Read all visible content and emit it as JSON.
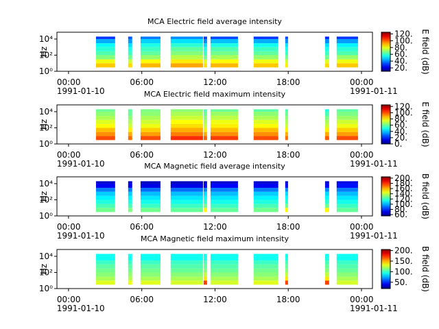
{
  "chart_data": [
    {
      "type": "spectrogram",
      "title": "MCA  Electric field average intensity",
      "ylabel": "Hz",
      "colorbar_label": "E field (dB)",
      "colormap": "jet",
      "log_y": true,
      "xlim": [
        "1991-01-09 23:03",
        "1991-01-11 00:54"
      ],
      "xticks": [
        {
          "value": "1991-01-10 00:00",
          "label": "00:00\n1991-01-10"
        },
        {
          "value": "1991-01-10 06:00",
          "label": "06:00"
        },
        {
          "value": "1991-01-10 12:00",
          "label": "12:00"
        },
        {
          "value": "1991-01-10 18:00",
          "label": "18:00"
        },
        {
          "value": "1991-01-11 00:00",
          "label": "00:00\n1991-01-11"
        }
      ],
      "ylim": [
        1,
        70000
      ],
      "yticks": [
        {
          "value": 1,
          "label": "10⁰"
        },
        {
          "value": 100,
          "label": "10²"
        },
        {
          "value": 10000,
          "label": "10⁴"
        }
      ],
      "zlim": [
        10,
        125
      ],
      "zticks": [
        {
          "value": 20,
          "label": "20."
        },
        {
          "value": 40,
          "label": "40."
        },
        {
          "value": 60,
          "label": "60."
        },
        {
          "value": 80,
          "label": "80."
        },
        {
          "value": 100,
          "label": "100."
        },
        {
          "value": 120,
          "label": "120."
        }
      ],
      "bins": [
        3,
        10,
        30,
        100,
        300,
        1000,
        3000,
        10000,
        20000
      ],
      "segments": [
        {
          "start": "1991-01-10 02:15",
          "end": "1991-01-10 03:49",
          "values": [
            88,
            80,
            68,
            62,
            58,
            54,
            44,
            30
          ]
        },
        {
          "start": "1991-01-10 04:53",
          "end": "1991-01-10 05:13",
          "values": [
            86,
            76,
            66,
            60,
            56,
            50,
            42,
            34
          ]
        },
        {
          "start": "1991-01-10 05:54",
          "end": "1991-01-10 07:32",
          "values": [
            90,
            82,
            70,
            64,
            60,
            56,
            48,
            38
          ]
        },
        {
          "start": "1991-01-10 08:22",
          "end": "1991-01-10 11:01",
          "values": [
            92,
            84,
            74,
            68,
            64,
            58,
            50,
            40
          ]
        },
        {
          "start": "1991-01-10 11:04",
          "end": "1991-01-10 11:21",
          "values": [
            85,
            78,
            66,
            60,
            56,
            50,
            40,
            30
          ]
        },
        {
          "start": "1991-01-10 11:38",
          "end": "1991-01-10 13:53",
          "values": [
            90,
            82,
            72,
            66,
            62,
            56,
            46,
            32
          ]
        },
        {
          "start": "1991-01-10 15:10",
          "end": "1991-01-10 17:11",
          "values": [
            88,
            80,
            70,
            64,
            60,
            55,
            44,
            30
          ]
        },
        {
          "start": "1991-01-10 17:45",
          "end": "1991-01-10 17:59",
          "values": [
            84,
            76,
            66,
            60,
            56,
            50,
            40,
            32
          ]
        },
        {
          "start": "1991-01-10 21:01",
          "end": "1991-01-10 21:21",
          "values": [
            86,
            78,
            66,
            60,
            56,
            50,
            40,
            28
          ]
        },
        {
          "start": "1991-01-10 21:58",
          "end": "1991-01-10 23:43",
          "values": [
            88,
            80,
            70,
            62,
            58,
            52,
            42,
            30
          ]
        }
      ]
    },
    {
      "type": "spectrogram",
      "title": "MCA  Electric field maximum intensity",
      "ylabel": "Hz",
      "colorbar_label": "E field (dB)",
      "colormap": "jet",
      "log_y": true,
      "xlim": [
        "1991-01-09 23:03",
        "1991-01-11 00:54"
      ],
      "xticks": [
        {
          "value": "1991-01-10 00:00",
          "label": "00:00\n1991-01-10"
        },
        {
          "value": "1991-01-10 06:00",
          "label": "06:00"
        },
        {
          "value": "1991-01-10 12:00",
          "label": "12:00"
        },
        {
          "value": "1991-01-10 18:00",
          "label": "18:00"
        },
        {
          "value": "1991-01-11 00:00",
          "label": "00:00\n1991-01-11"
        }
      ],
      "ylim": [
        1,
        70000
      ],
      "yticks": [
        {
          "value": 1,
          "label": "10⁰"
        },
        {
          "value": 100,
          "label": "10²"
        },
        {
          "value": 10000,
          "label": "10⁴"
        }
      ],
      "zlim": [
        0,
        125
      ],
      "zticks": [
        {
          "value": 0,
          "label": "0."
        },
        {
          "value": 20,
          "label": "20."
        },
        {
          "value": 40,
          "label": "40."
        },
        {
          "value": 60,
          "label": "60."
        },
        {
          "value": 80,
          "label": "80."
        },
        {
          "value": 100,
          "label": "100."
        },
        {
          "value": 120,
          "label": "120."
        }
      ],
      "bins": [
        3,
        10,
        30,
        100,
        300,
        1000,
        3000,
        10000,
        20000
      ],
      "segments": [
        {
          "start": "1991-01-10 02:15",
          "end": "1991-01-10 03:49",
          "values": [
            100,
            92,
            86,
            78,
            74,
            68,
            64,
            60
          ]
        },
        {
          "start": "1991-01-10 04:53",
          "end": "1991-01-10 05:13",
          "values": [
            96,
            88,
            80,
            72,
            68,
            64,
            60,
            58
          ]
        },
        {
          "start": "1991-01-10 05:54",
          "end": "1991-01-10 07:32",
          "values": [
            100,
            90,
            84,
            76,
            72,
            68,
            64,
            62
          ]
        },
        {
          "start": "1991-01-10 08:22",
          "end": "1991-01-10 11:01",
          "values": [
            104,
            94,
            88,
            82,
            78,
            72,
            68,
            64
          ]
        },
        {
          "start": "1991-01-10 11:04",
          "end": "1991-01-10 11:21",
          "values": [
            98,
            88,
            80,
            72,
            68,
            64,
            60,
            56
          ]
        },
        {
          "start": "1991-01-10 11:38",
          "end": "1991-01-10 13:53",
          "values": [
            102,
            92,
            86,
            80,
            76,
            70,
            66,
            60
          ]
        },
        {
          "start": "1991-01-10 15:10",
          "end": "1991-01-10 17:11",
          "values": [
            100,
            92,
            86,
            78,
            74,
            68,
            64,
            58
          ]
        },
        {
          "start": "1991-01-10 17:45",
          "end": "1991-01-10 17:59",
          "values": [
            96,
            88,
            80,
            72,
            68,
            64,
            60,
            56
          ]
        },
        {
          "start": "1991-01-10 21:01",
          "end": "1991-01-10 21:21",
          "values": [
            98,
            88,
            80,
            72,
            68,
            62,
            56,
            50
          ]
        },
        {
          "start": "1991-01-10 21:58",
          "end": "1991-01-10 23:43",
          "values": [
            100,
            90,
            84,
            76,
            72,
            66,
            62,
            58
          ]
        }
      ]
    },
    {
      "type": "spectrogram",
      "title": "MCA  Magnetic field average intensity",
      "ylabel": "Hz",
      "colorbar_label": "B field (dB)",
      "colormap": "jet",
      "log_y": true,
      "xlim": [
        "1991-01-09 23:03",
        "1991-01-11 00:54"
      ],
      "xticks": [
        {
          "value": "1991-01-10 00:00",
          "label": "00:00\n1991-01-10"
        },
        {
          "value": "1991-01-10 06:00",
          "label": "06:00"
        },
        {
          "value": "1991-01-10 12:00",
          "label": "12:00"
        },
        {
          "value": "1991-01-10 18:00",
          "label": "18:00"
        },
        {
          "value": "1991-01-11 00:00",
          "label": "00:00\n1991-01-11"
        }
      ],
      "ylim": [
        1,
        70000
      ],
      "yticks": [
        {
          "value": 1,
          "label": "10⁰"
        },
        {
          "value": 100,
          "label": "10²"
        },
        {
          "value": 10000,
          "label": "10⁴"
        }
      ],
      "zlim": [
        55,
        205
      ],
      "zticks": [
        {
          "value": 60,
          "label": "60."
        },
        {
          "value": 80,
          "label": "80."
        },
        {
          "value": 100,
          "label": "100."
        },
        {
          "value": 120,
          "label": "120."
        },
        {
          "value": 140,
          "label": "140."
        },
        {
          "value": 160,
          "label": "160."
        },
        {
          "value": 180,
          "label": "180."
        },
        {
          "value": 200,
          "label": "200."
        }
      ],
      "bins": [
        3,
        10,
        30,
        100,
        300,
        1000,
        3000,
        10000,
        20000
      ],
      "segments": [
        {
          "start": "1991-01-10 02:15",
          "end": "1991-01-10 03:49",
          "values": [
            128,
            122,
            116,
            110,
            104,
            92,
            72,
            66
          ]
        },
        {
          "start": "1991-01-10 04:53",
          "end": "1991-01-10 05:13",
          "values": [
            130,
            122,
            116,
            110,
            104,
            92,
            72,
            66
          ]
        },
        {
          "start": "1991-01-10 05:54",
          "end": "1991-01-10 07:32",
          "values": [
            128,
            120,
            114,
            108,
            102,
            90,
            70,
            64
          ]
        },
        {
          "start": "1991-01-10 08:22",
          "end": "1991-01-10 11:01",
          "values": [
            126,
            120,
            114,
            108,
            102,
            90,
            70,
            64
          ]
        },
        {
          "start": "1991-01-10 11:04",
          "end": "1991-01-10 11:21",
          "values": [
            150,
            128,
            118,
            112,
            106,
            94,
            74,
            66
          ]
        },
        {
          "start": "1991-01-10 11:38",
          "end": "1991-01-10 13:53",
          "values": [
            126,
            120,
            114,
            108,
            102,
            92,
            74,
            66
          ]
        },
        {
          "start": "1991-01-10 15:10",
          "end": "1991-01-10 17:11",
          "values": [
            128,
            122,
            116,
            110,
            104,
            92,
            72,
            66
          ]
        },
        {
          "start": "1991-01-10 17:45",
          "end": "1991-01-10 17:59",
          "values": [
            150,
            128,
            118,
            112,
            106,
            94,
            74,
            66
          ]
        },
        {
          "start": "1991-01-10 21:01",
          "end": "1991-01-10 21:21",
          "values": [
            150,
            128,
            118,
            112,
            106,
            94,
            74,
            66
          ]
        },
        {
          "start": "1991-01-10 21:58",
          "end": "1991-01-10 23:43",
          "values": [
            126,
            120,
            114,
            108,
            102,
            92,
            76,
            70
          ]
        }
      ]
    },
    {
      "type": "spectrogram",
      "title": "MCA  Magnetic field maximum intensity",
      "ylabel": "Hz",
      "colorbar_label": "B field (dB)",
      "colormap": "jet",
      "log_y": true,
      "xlim": [
        "1991-01-09 23:03",
        "1991-01-11 00:54"
      ],
      "xticks": [
        {
          "value": "1991-01-10 00:00",
          "label": "00:00\n1991-01-10"
        },
        {
          "value": "1991-01-10 06:00",
          "label": "06:00"
        },
        {
          "value": "1991-01-10 12:00",
          "label": "12:00"
        },
        {
          "value": "1991-01-10 18:00",
          "label": "18:00"
        },
        {
          "value": "1991-01-11 00:00",
          "label": "00:00\n1991-01-11"
        }
      ],
      "ylim": [
        1,
        70000
      ],
      "yticks": [
        {
          "value": 1,
          "label": "10⁰"
        },
        {
          "value": 100,
          "label": "10²"
        },
        {
          "value": 10000,
          "label": "10⁴"
        }
      ],
      "zlim": [
        20,
        205
      ],
      "zticks": [
        {
          "value": 50,
          "label": "50."
        },
        {
          "value": 100,
          "label": "100."
        },
        {
          "value": 150,
          "label": "150."
        },
        {
          "value": 200,
          "label": "200."
        }
      ],
      "bins": [
        3,
        10,
        30,
        100,
        300,
        1000,
        3000,
        10000,
        20000
      ],
      "segments": [
        {
          "start": "1991-01-10 02:15",
          "end": "1991-01-10 03:49",
          "values": [
            130,
            120,
            114,
            110,
            106,
            100,
            92,
            92
          ]
        },
        {
          "start": "1991-01-10 04:53",
          "end": "1991-01-10 05:13",
          "values": [
            132,
            122,
            116,
            110,
            106,
            100,
            92,
            92
          ]
        },
        {
          "start": "1991-01-10 05:54",
          "end": "1991-01-10 07:32",
          "values": [
            130,
            120,
            114,
            110,
            106,
            100,
            92,
            92
          ]
        },
        {
          "start": "1991-01-10 08:22",
          "end": "1991-01-10 11:01",
          "values": [
            128,
            120,
            114,
            108,
            104,
            100,
            92,
            92
          ]
        },
        {
          "start": "1991-01-10 11:04",
          "end": "1991-01-10 11:21",
          "values": [
            170,
            140,
            124,
            114,
            108,
            102,
            94,
            92
          ]
        },
        {
          "start": "1991-01-10 11:38",
          "end": "1991-01-10 13:53",
          "values": [
            128,
            120,
            114,
            108,
            104,
            100,
            92,
            92
          ]
        },
        {
          "start": "1991-01-10 15:10",
          "end": "1991-01-10 17:11",
          "values": [
            130,
            120,
            114,
            110,
            106,
            100,
            92,
            92
          ]
        },
        {
          "start": "1991-01-10 17:45",
          "end": "1991-01-10 17:59",
          "values": [
            170,
            140,
            124,
            114,
            108,
            102,
            94,
            92
          ]
        },
        {
          "start": "1991-01-10 21:01",
          "end": "1991-01-10 21:21",
          "values": [
            170,
            140,
            124,
            114,
            108,
            102,
            94,
            92
          ]
        },
        {
          "start": "1991-01-10 21:58",
          "end": "1991-01-10 23:43",
          "values": [
            128,
            120,
            114,
            108,
            104,
            100,
            92,
            92
          ]
        }
      ]
    }
  ]
}
